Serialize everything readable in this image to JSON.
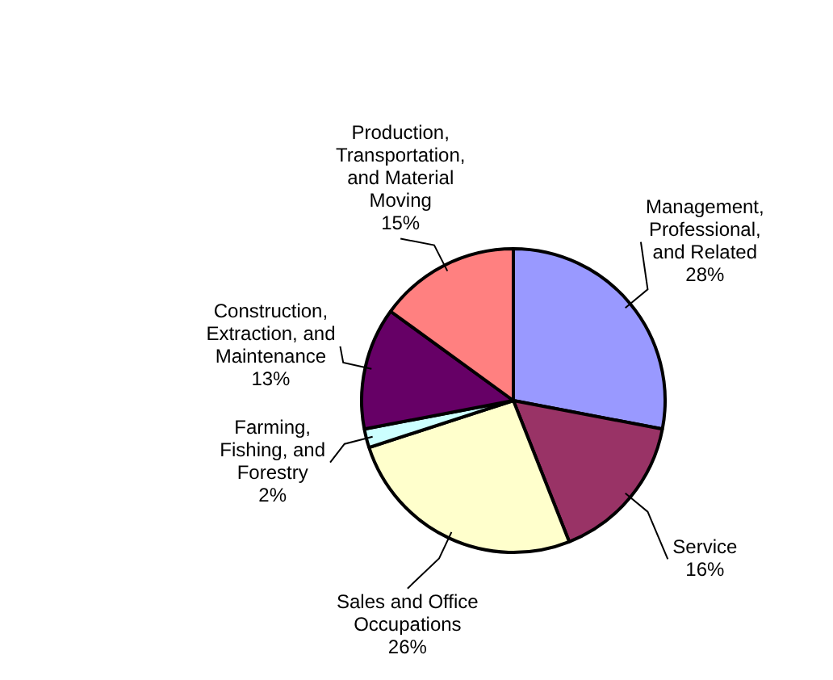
{
  "chart_data": {
    "type": "pie",
    "categories": [
      "Management, Professional, and Related",
      "Service",
      "Sales and Office Occupations",
      "Farming, Fishing, and Forestry",
      "Construction, Extraction, and Maintenance",
      "Production, Transportation, and Material Moving"
    ],
    "values": [
      28,
      16,
      26,
      2,
      13,
      15
    ],
    "value_labels": [
      "28%",
      "16%",
      "26%",
      "2%",
      "13%",
      "15%"
    ],
    "colors": [
      "#9999ff",
      "#993366",
      "#ffffcc",
      "#ccffff",
      "#660066",
      "#ff8080"
    ],
    "legend": false
  }
}
